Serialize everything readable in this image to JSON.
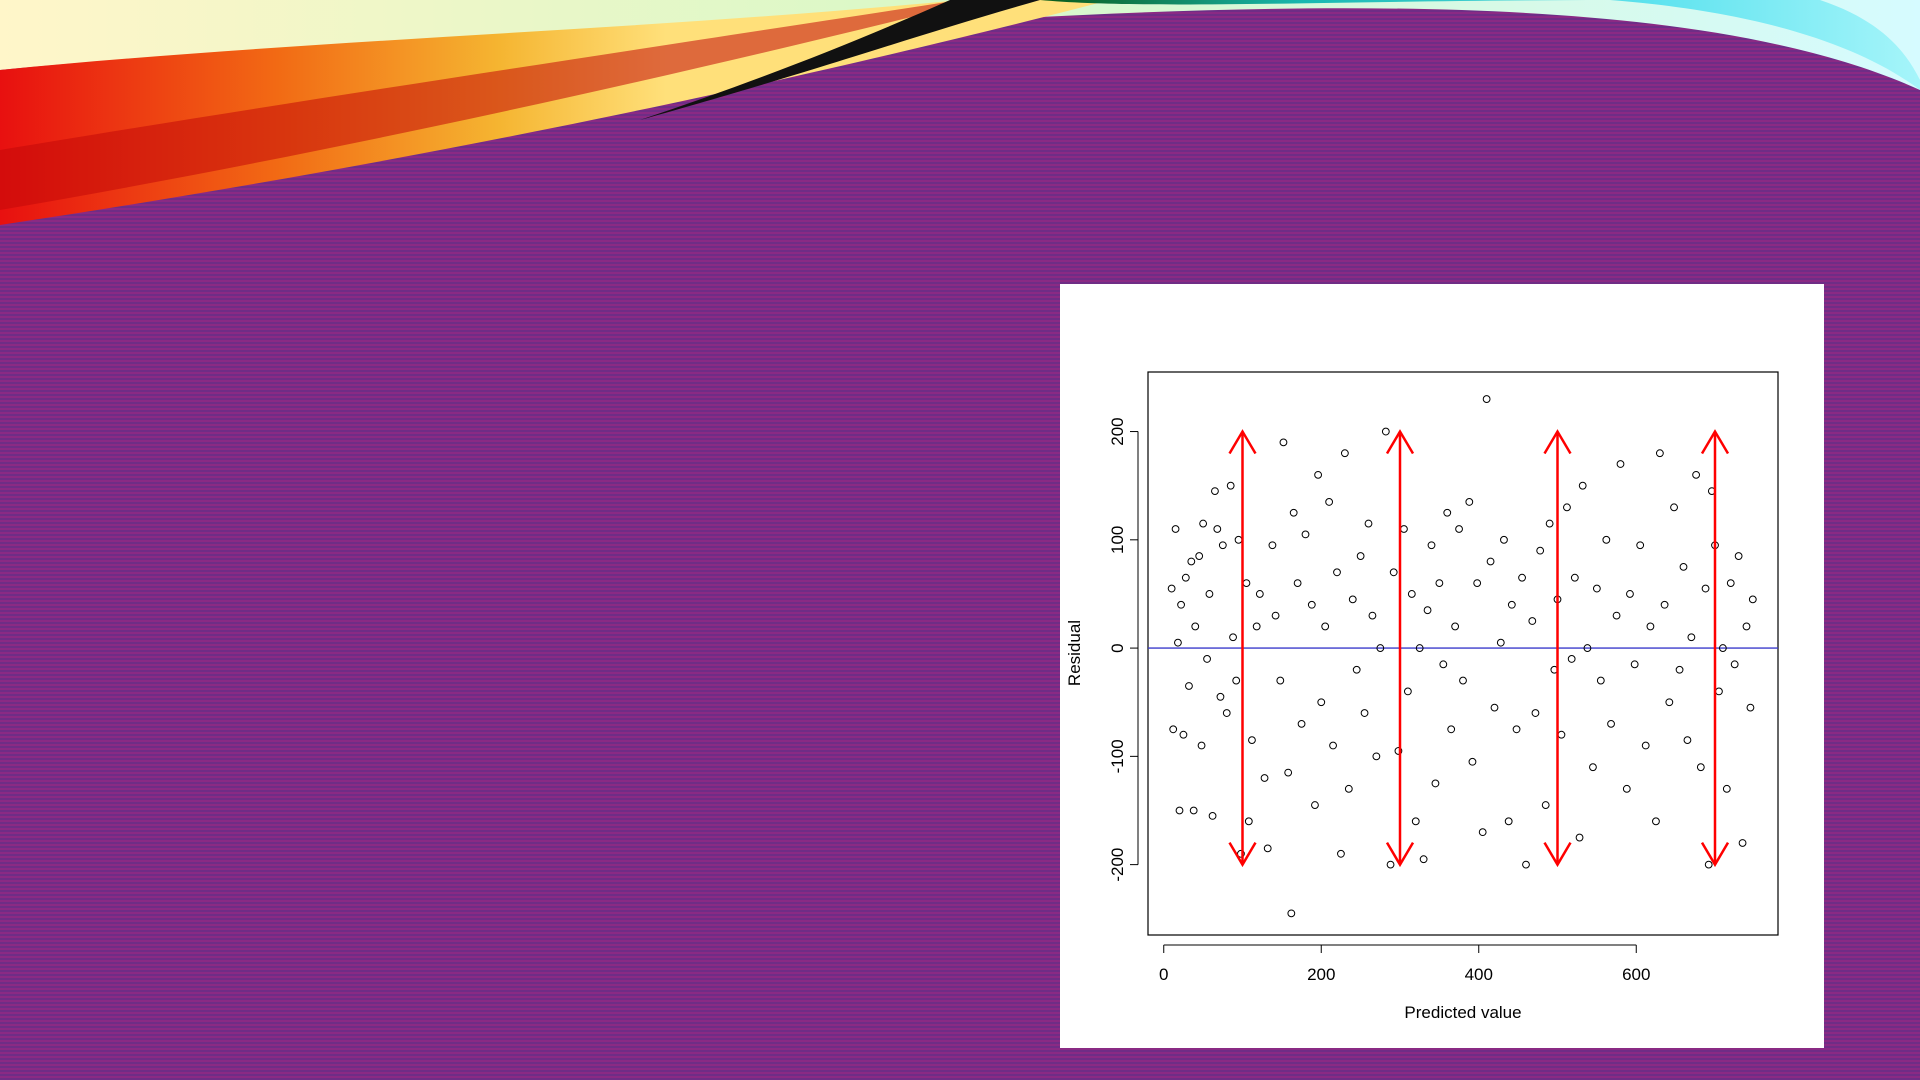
{
  "chart_data": {
    "type": "scatter",
    "title": "",
    "xlabel": "Predicted value",
    "ylabel": "Residual",
    "xlim": [
      -20,
      780
    ],
    "ylim": [
      -265,
      255
    ],
    "xticks": [
      0,
      200,
      400,
      600
    ],
    "xtick_labels": [
      "0",
      "200",
      "400",
      "600"
    ],
    "yticks": [
      -200,
      -100,
      0,
      100,
      200
    ],
    "ytick_labels": [
      "-200",
      "-100",
      "0",
      "100",
      "200"
    ],
    "grid": false,
    "legend": "none",
    "marker": "open-circle",
    "point_color": "#000000",
    "reference_line": {
      "y": 0,
      "color": "#3b3bcc"
    },
    "arrows": {
      "color": "#ff0000",
      "x": [
        100,
        300,
        500,
        700
      ],
      "y_from": -200,
      "y_to": 200
    },
    "points": [
      [
        10,
        55
      ],
      [
        12,
        -75
      ],
      [
        15,
        110
      ],
      [
        18,
        5
      ],
      [
        20,
        -150
      ],
      [
        22,
        40
      ],
      [
        25,
        -80
      ],
      [
        28,
        65
      ],
      [
        32,
        -35
      ],
      [
        35,
        80
      ],
      [
        38,
        -150
      ],
      [
        40,
        20
      ],
      [
        45,
        85
      ],
      [
        48,
        -90
      ],
      [
        50,
        115
      ],
      [
        55,
        -10
      ],
      [
        58,
        50
      ],
      [
        62,
        -155
      ],
      [
        65,
        145
      ],
      [
        68,
        110
      ],
      [
        72,
        -45
      ],
      [
        75,
        95
      ],
      [
        80,
        -60
      ],
      [
        85,
        150
      ],
      [
        88,
        10
      ],
      [
        92,
        -30
      ],
      [
        95,
        100
      ],
      [
        98,
        -190
      ],
      [
        105,
        60
      ],
      [
        108,
        -160
      ],
      [
        112,
        -85
      ],
      [
        118,
        20
      ],
      [
        122,
        50
      ],
      [
        128,
        -120
      ],
      [
        132,
        -185
      ],
      [
        138,
        95
      ],
      [
        142,
        30
      ],
      [
        148,
        -30
      ],
      [
        152,
        190
      ],
      [
        158,
        -115
      ],
      [
        162,
        -245
      ],
      [
        165,
        125
      ],
      [
        170,
        60
      ],
      [
        175,
        -70
      ],
      [
        180,
        105
      ],
      [
        188,
        40
      ],
      [
        192,
        -145
      ],
      [
        196,
        160
      ],
      [
        200,
        -50
      ],
      [
        205,
        20
      ],
      [
        210,
        135
      ],
      [
        215,
        -90
      ],
      [
        220,
        70
      ],
      [
        225,
        -190
      ],
      [
        230,
        180
      ],
      [
        235,
        -130
      ],
      [
        240,
        45
      ],
      [
        245,
        -20
      ],
      [
        250,
        85
      ],
      [
        255,
        -60
      ],
      [
        260,
        115
      ],
      [
        265,
        30
      ],
      [
        270,
        -100
      ],
      [
        275,
        0
      ],
      [
        282,
        200
      ],
      [
        288,
        -200
      ],
      [
        292,
        70
      ],
      [
        298,
        -95
      ],
      [
        305,
        110
      ],
      [
        310,
        -40
      ],
      [
        315,
        50
      ],
      [
        320,
        -160
      ],
      [
        325,
        0
      ],
      [
        330,
        -195
      ],
      [
        335,
        35
      ],
      [
        340,
        95
      ],
      [
        345,
        -125
      ],
      [
        350,
        60
      ],
      [
        355,
        -15
      ],
      [
        360,
        125
      ],
      [
        365,
        -75
      ],
      [
        370,
        20
      ],
      [
        375,
        110
      ],
      [
        380,
        -30
      ],
      [
        388,
        135
      ],
      [
        392,
        -105
      ],
      [
        398,
        60
      ],
      [
        405,
        -170
      ],
      [
        410,
        230
      ],
      [
        415,
        80
      ],
      [
        420,
        -55
      ],
      [
        428,
        5
      ],
      [
        432,
        100
      ],
      [
        438,
        -160
      ],
      [
        442,
        40
      ],
      [
        448,
        -75
      ],
      [
        455,
        65
      ],
      [
        460,
        -200
      ],
      [
        468,
        25
      ],
      [
        472,
        -60
      ],
      [
        478,
        90
      ],
      [
        485,
        -145
      ],
      [
        490,
        115
      ],
      [
        496,
        -20
      ],
      [
        500,
        45
      ],
      [
        505,
        -80
      ],
      [
        512,
        130
      ],
      [
        518,
        -10
      ],
      [
        522,
        65
      ],
      [
        528,
        -175
      ],
      [
        532,
        150
      ],
      [
        538,
        0
      ],
      [
        545,
        -110
      ],
      [
        550,
        55
      ],
      [
        555,
        -30
      ],
      [
        562,
        100
      ],
      [
        568,
        -70
      ],
      [
        575,
        30
      ],
      [
        580,
        170
      ],
      [
        588,
        -130
      ],
      [
        592,
        50
      ],
      [
        598,
        -15
      ],
      [
        605,
        95
      ],
      [
        612,
        -90
      ],
      [
        618,
        20
      ],
      [
        625,
        -160
      ],
      [
        630,
        180
      ],
      [
        636,
        40
      ],
      [
        642,
        -50
      ],
      [
        648,
        130
      ],
      [
        655,
        -20
      ],
      [
        660,
        75
      ],
      [
        665,
        -85
      ],
      [
        670,
        10
      ],
      [
        676,
        160
      ],
      [
        682,
        -110
      ],
      [
        688,
        55
      ],
      [
        692,
        -200
      ],
      [
        696,
        145
      ],
      [
        700,
        95
      ],
      [
        705,
        -40
      ],
      [
        710,
        0
      ],
      [
        715,
        -130
      ],
      [
        720,
        60
      ],
      [
        725,
        -15
      ],
      [
        730,
        85
      ],
      [
        735,
        -180
      ],
      [
        740,
        20
      ],
      [
        745,
        -55
      ],
      [
        748,
        45
      ]
    ]
  }
}
